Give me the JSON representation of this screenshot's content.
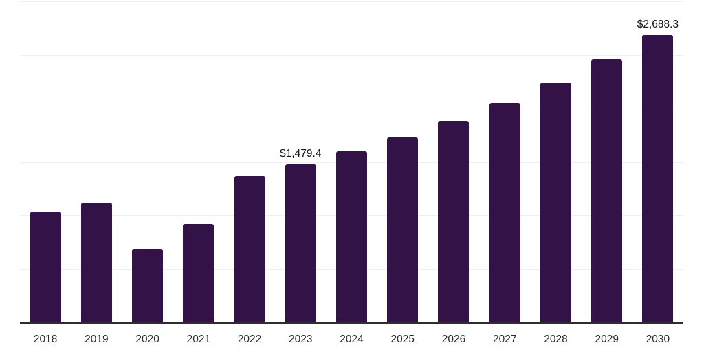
{
  "chart_data": {
    "type": "bar",
    "categories": [
      "2018",
      "2019",
      "2020",
      "2021",
      "2022",
      "2023",
      "2024",
      "2025",
      "2026",
      "2027",
      "2028",
      "2029",
      "2030"
    ],
    "values": [
      1035,
      1120,
      690,
      920,
      1370,
      1479.4,
      1600,
      1730,
      1885,
      2050,
      2240,
      2460,
      2688.3
    ],
    "bar_labels": [
      "",
      "",
      "",
      "",
      "",
      "$1,479.4",
      "",
      "",
      "",
      "",
      "",
      "",
      "$2,688.3"
    ],
    "xlabel": "",
    "ylabel": "",
    "ylim": [
      0,
      3000
    ],
    "gridline_interval": 500,
    "legend": "none",
    "grid": "horizontal-only",
    "y_axis_tick_labels_visible": false,
    "colors": {
      "bar": "#331247",
      "gridline": "#efefef",
      "axis_line": "#2e2e2e",
      "tick_label": "#2b2b2b",
      "data_label": "#141414",
      "background": "#ffffff"
    }
  }
}
